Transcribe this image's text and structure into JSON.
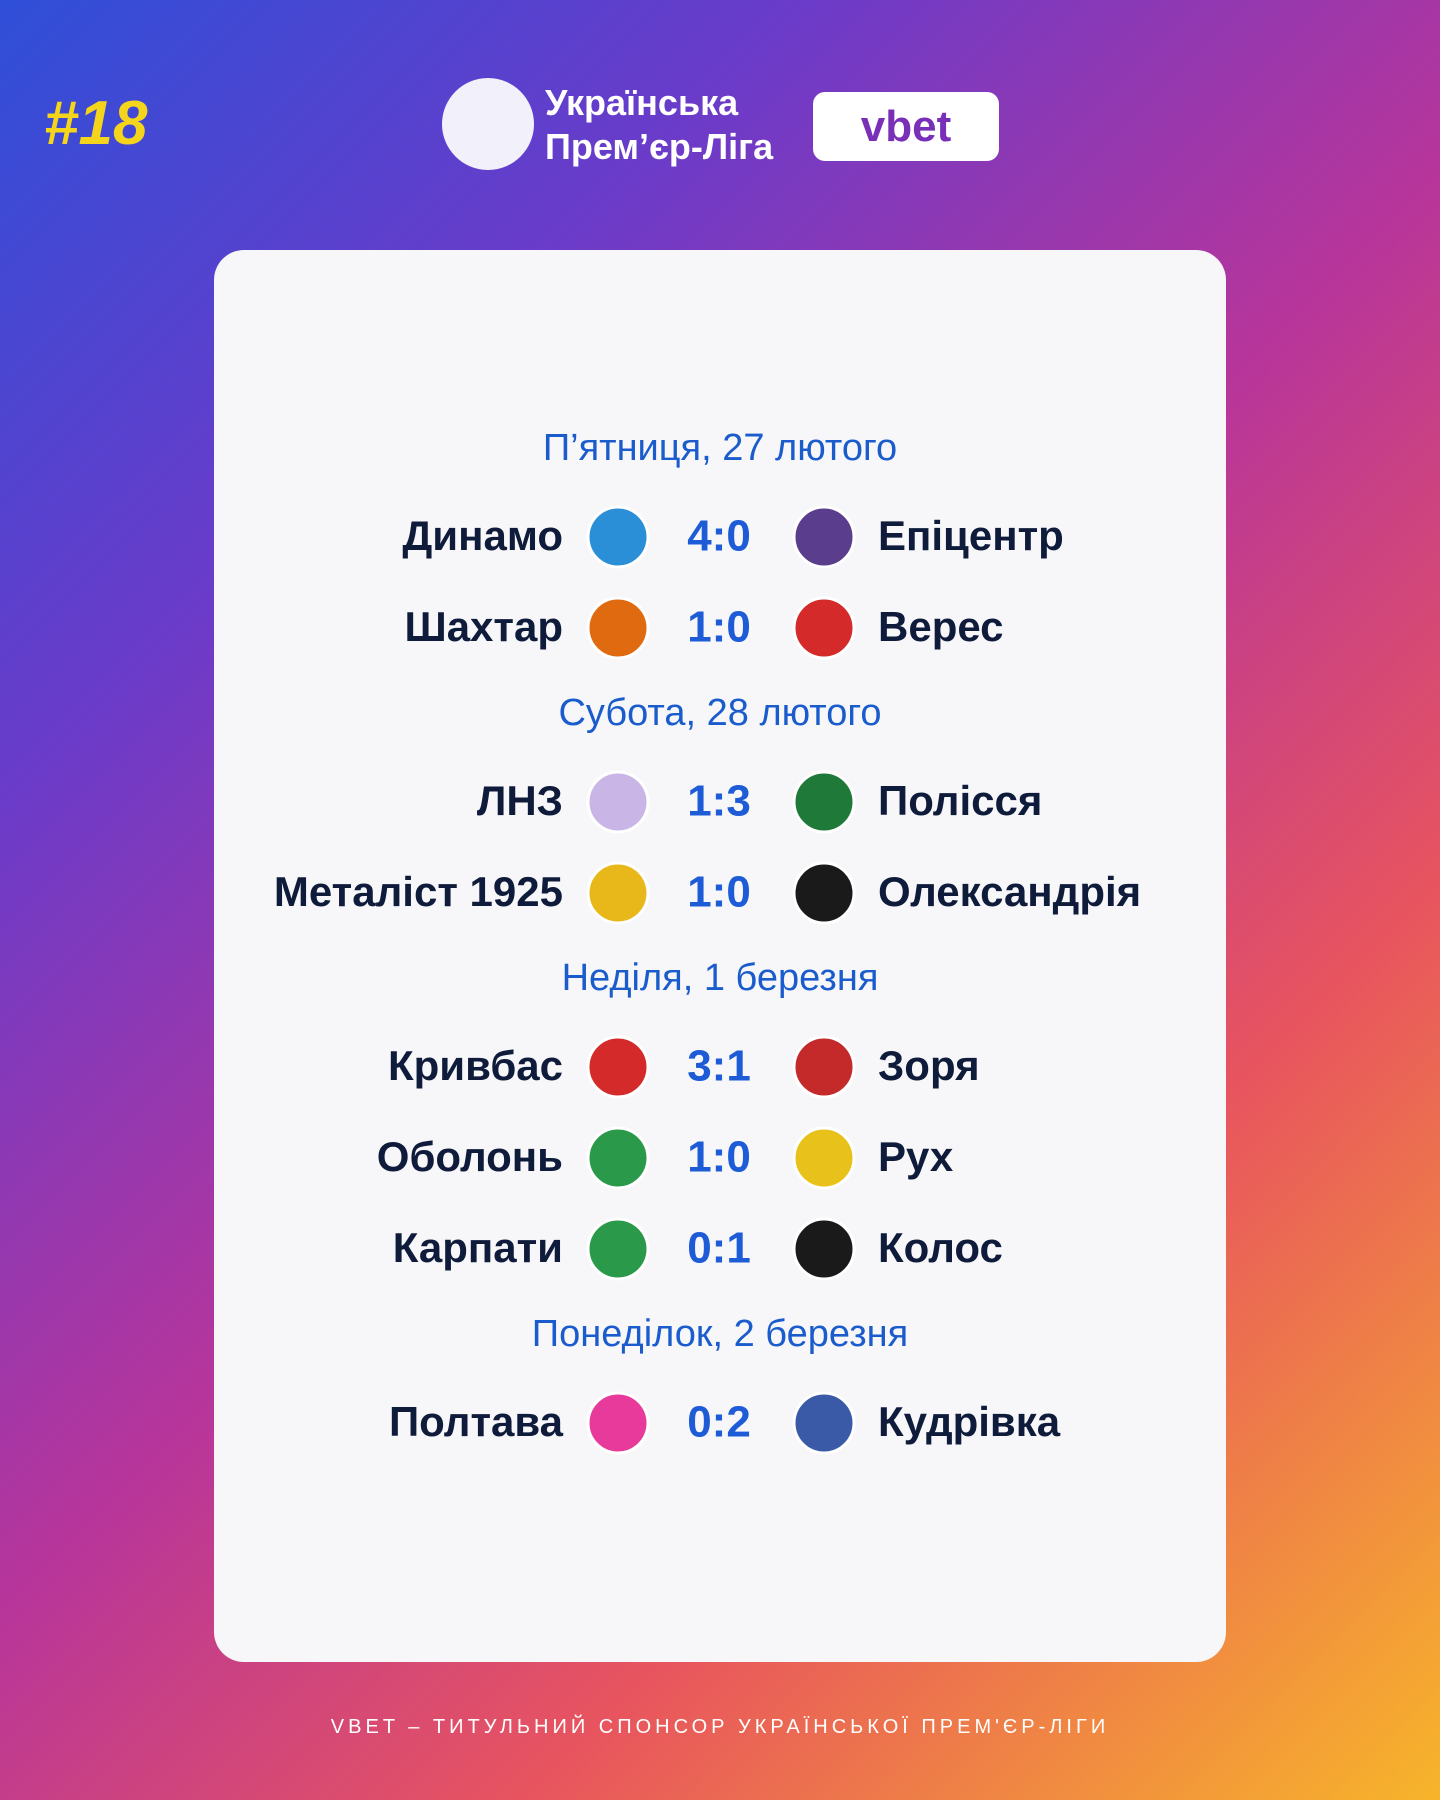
{
  "header": {
    "round": "#18",
    "league_line1": "Українська",
    "league_line2": "Прем’єр-Ліга",
    "sponsor": "vbet"
  },
  "days": [
    {
      "date": "П’ятниця, 27 лютого",
      "matches": [
        {
          "home": "Динамо",
          "score": "4:0",
          "away": "Епіцентр"
        },
        {
          "home": "Шахтар",
          "score": "1:0",
          "away": "Верес"
        }
      ]
    },
    {
      "date": "Субота, 28 лютого",
      "matches": [
        {
          "home": "ЛНЗ",
          "score": "1:3",
          "away": "Полісся"
        },
        {
          "home": "Металіст 1925",
          "score": "1:0",
          "away": "Олександрія"
        }
      ]
    },
    {
      "date": "Неділя, 1 березня",
      "matches": [
        {
          "home": "Кривбас",
          "score": "3:1",
          "away": "Зоря"
        },
        {
          "home": "Оболонь",
          "score": "1:0",
          "away": "Рух"
        },
        {
          "home": "Карпати",
          "score": "0:1",
          "away": "Колос"
        }
      ]
    },
    {
      "date": "Понеділок, 2 березня",
      "matches": [
        {
          "home": "Полтава",
          "score": "0:2",
          "away": "Кудрівка"
        }
      ]
    }
  ],
  "footer": "VBET – ТИТУЛЬНИЙ СПОНСОР УКРАЇНСЬКОЇ ПРЕМ'ЄР-ЛІГИ"
}
